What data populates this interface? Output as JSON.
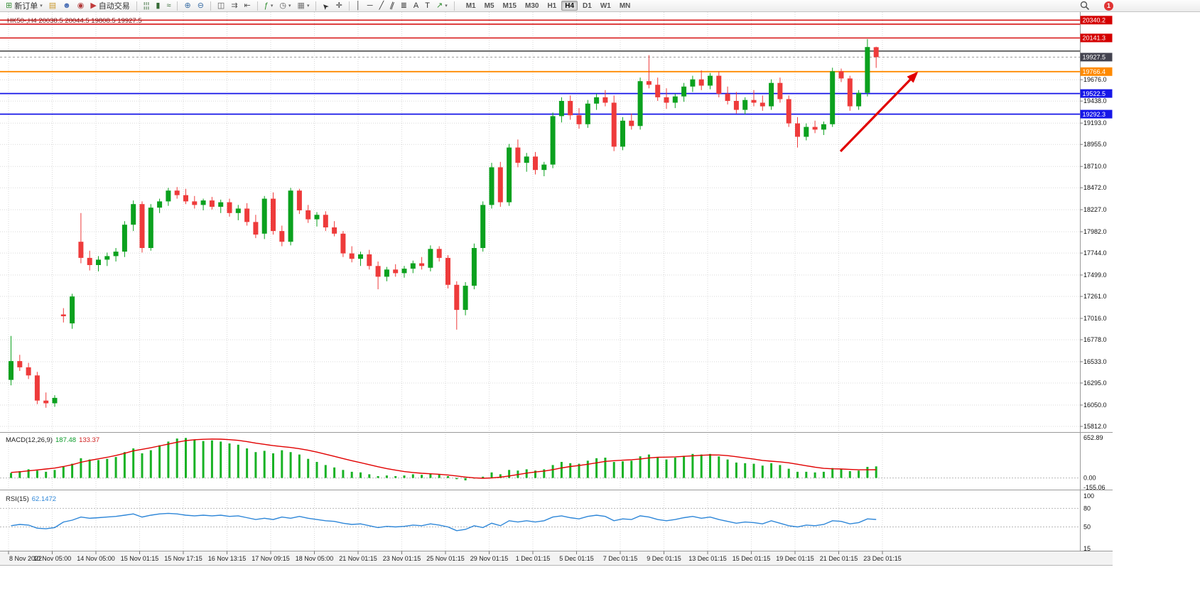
{
  "toolbar": {
    "items": [
      {
        "type": "button",
        "name": "new-order-button",
        "icon_name": "new-order-icon",
        "glyph": "⊞",
        "glyph_color": "#3a8f3a",
        "label": "新订单",
        "caret": true
      },
      {
        "type": "icon",
        "name": "market-watch-icon",
        "glyph": "▤",
        "color": "#c9992e"
      },
      {
        "type": "icon",
        "name": "community-icon",
        "glyph": "☻",
        "color": "#4a6fb5"
      },
      {
        "type": "icon",
        "name": "alerts-icon",
        "glyph": "◉",
        "color": "#b03a3a"
      },
      {
        "type": "button",
        "name": "autotrading-button",
        "icon_name": "autotrading-icon",
        "glyph": "▶",
        "glyph_color": "#c03a3a",
        "label": "自动交易",
        "caret": false
      },
      {
        "type": "sep"
      },
      {
        "type": "icon",
        "name": "bar-chart-icon",
        "glyph": "¦¦¦",
        "color": "#356a35"
      },
      {
        "type": "icon",
        "name": "candlestick-chart-icon",
        "glyph": "▮",
        "color": "#356a35"
      },
      {
        "type": "icon",
        "name": "line-chart-icon",
        "glyph": "≈",
        "color": "#356a35"
      },
      {
        "type": "sep"
      },
      {
        "type": "icon",
        "name": "zoom-in-icon",
        "glyph": "⊕",
        "color": "#3a6ea5"
      },
      {
        "type": "icon",
        "name": "zoom-out-icon",
        "glyph": "⊖",
        "color": "#3a6ea5"
      },
      {
        "type": "sep"
      },
      {
        "type": "icon",
        "name": "tile-windows-icon",
        "glyph": "◫",
        "color": "#555555"
      },
      {
        "type": "icon",
        "name": "auto-scroll-icon",
        "glyph": "⇉",
        "color": "#555555"
      },
      {
        "type": "icon",
        "name": "chart-shift-icon",
        "glyph": "⇤",
        "color": "#555555"
      },
      {
        "type": "sep"
      },
      {
        "type": "icon",
        "name": "indicators-icon",
        "glyph": "ƒ",
        "color": "#2a8a2a",
        "caret": true
      },
      {
        "type": "icon",
        "name": "periods-icon",
        "glyph": "◷",
        "color": "#555555",
        "caret": true
      },
      {
        "type": "icon",
        "name": "templates-icon",
        "glyph": "▦",
        "color": "#777777",
        "caret": true
      },
      {
        "type": "sep"
      },
      {
        "type": "icon",
        "name": "cursor-icon",
        "glyph": "➤",
        "color": "#333333",
        "rot": "-135"
      },
      {
        "type": "icon",
        "name": "crosshair-icon",
        "glyph": "✛",
        "color": "#333333"
      },
      {
        "type": "sep"
      },
      {
        "type": "icon",
        "name": "vertical-line-icon",
        "glyph": "│",
        "color": "#333333"
      },
      {
        "type": "icon",
        "name": "horizontal-line-icon",
        "glyph": "─",
        "color": "#333333"
      },
      {
        "type": "icon",
        "name": "trendline-icon",
        "glyph": "╱",
        "color": "#333333"
      },
      {
        "type": "icon",
        "name": "equidistant-channel-icon",
        "glyph": "∥",
        "color": "#333333",
        "rot": "20"
      },
      {
        "type": "icon",
        "name": "fibonacci-icon",
        "glyph": "≣",
        "color": "#333333"
      },
      {
        "type": "icon",
        "name": "text-icon",
        "glyph": "A",
        "color": "#333333"
      },
      {
        "type": "icon",
        "name": "text-label-icon",
        "glyph": "T",
        "color": "#333333"
      },
      {
        "type": "icon",
        "name": "arrows-icon",
        "glyph": "↗",
        "color": "#2a8a2a",
        "caret": true
      },
      {
        "type": "sep"
      },
      {
        "type": "tf-group"
      }
    ],
    "timeframes": [
      "M1",
      "M5",
      "M15",
      "M30",
      "H1",
      "H4",
      "D1",
      "W1",
      "MN"
    ],
    "active_timeframe": "H4",
    "notification_count": "1"
  },
  "chart": {
    "header": "HK50-,H4  20038.5 20044.5 19808.5 19927.5"
  },
  "macd_panel": {
    "name": "MACD(12,26,9)",
    "value_main": "187.48",
    "value_signal": "133.37",
    "axis": [
      "652.89",
      "0.00",
      "-155.06"
    ]
  },
  "rsi_panel": {
    "name": "RSI(15)",
    "value": "62.1472",
    "axis": [
      "100",
      "80",
      "50",
      "15"
    ]
  },
  "chart_data": {
    "type": "candlestick",
    "symbol": "HK50-",
    "timeframe": "H4",
    "ohlc_header": {
      "open": 20038.5,
      "high": 20044.5,
      "low": 19808.5,
      "close": 19927.5
    },
    "ylim": [
      15812,
      20430
    ],
    "colors": {
      "up": "#0ba11e",
      "down": "#ee3b3b",
      "macd_histogram": "#18b224",
      "macd_signal": "#e10000",
      "rsi_line": "#2d86d8",
      "grid": "#d9d9d9",
      "arrow": "#e10000"
    },
    "price_axis_gridlines": [
      "19676.0",
      "19438.0",
      "19193.0",
      "18955.0",
      "18710.0",
      "18472.0",
      "18227.0",
      "17982.0",
      "17744.0",
      "17499.0",
      "17261.0",
      "17016.0",
      "16778.0",
      "16533.0",
      "16295.0",
      "16050.0",
      "15812.0"
    ],
    "time_axis_labels": [
      "8 Nov 2022",
      "10 Nov 05:00",
      "14 Nov 05:00",
      "15 Nov 01:15",
      "15 Nov 17:15",
      "16 Nov 13:15",
      "17 Nov 09:15",
      "18 Nov 05:00",
      "21 Nov 01:15",
      "23 Nov 01:15",
      "25 Nov 01:15",
      "29 Nov 01:15",
      "1 Dec 01:15",
      "5 Dec 01:15",
      "7 Dec 01:15",
      "9 Dec 01:15",
      "13 Dec 01:15",
      "15 Dec 01:15",
      "19 Dec 01:15",
      "21 Dec 01:15",
      "23 Dec 01:15"
    ],
    "levels": [
      {
        "price": 20340.2,
        "label": "20340.2",
        "color": "#d40000",
        "width": 1.4
      },
      {
        "price": 20295,
        "label": null,
        "color": "#d40000",
        "width": 1.4
      },
      {
        "price": 20141.3,
        "label": "20141.3",
        "color": "#d40000",
        "width": 1.4
      },
      {
        "price": 19995,
        "label": null,
        "color": "#1a1a1a",
        "width": 1.2
      },
      {
        "price": 19927.5,
        "label": "19927.5",
        "color": "#9a9a9a",
        "label_bg": "#43434f",
        "width": 1,
        "dashed": true
      },
      {
        "price": 19766.4,
        "label": "19766.4",
        "color": "#ff8a00",
        "width": 1.8
      },
      {
        "price": 19522.5,
        "label": "19522.5",
        "color": "#1616e8",
        "width": 1.8
      },
      {
        "price": 19292.3,
        "label": "19292.3",
        "color": "#1616e8",
        "width": 1.8
      }
    ],
    "annotation": {
      "type": "arrow",
      "color": "#e10000"
    },
    "candles": [
      [
        16330,
        16820,
        16270,
        16540
      ],
      [
        16540,
        16610,
        16430,
        16470
      ],
      [
        16470,
        16520,
        16340,
        16380
      ],
      [
        16380,
        16420,
        16060,
        16100
      ],
      [
        16100,
        16190,
        16020,
        16070
      ],
      [
        16070,
        16160,
        16030,
        16130
      ],
      [
        17060,
        17130,
        16970,
        17040
      ],
      [
        16960,
        17290,
        16900,
        17260
      ],
      [
        17870,
        18190,
        17630,
        17690
      ],
      [
        17690,
        17770,
        17550,
        17610
      ],
      [
        17610,
        17710,
        17540,
        17670
      ],
      [
        17670,
        17750,
        17600,
        17710
      ],
      [
        17710,
        17800,
        17650,
        17760
      ],
      [
        17760,
        18100,
        17700,
        18060
      ],
      [
        18060,
        18330,
        17990,
        18290
      ],
      [
        18290,
        18320,
        17750,
        17800
      ],
      [
        17800,
        18290,
        17770,
        18250
      ],
      [
        18250,
        18350,
        18190,
        18320
      ],
      [
        18320,
        18470,
        18270,
        18440
      ],
      [
        18440,
        18480,
        18350,
        18390
      ],
      [
        18390,
        18460,
        18290,
        18320
      ],
      [
        18320,
        18380,
        18240,
        18280
      ],
      [
        18280,
        18350,
        18220,
        18330
      ],
      [
        18330,
        18370,
        18230,
        18260
      ],
      [
        18260,
        18340,
        18190,
        18310
      ],
      [
        18310,
        18350,
        18150,
        18190
      ],
      [
        18190,
        18280,
        18110,
        18240
      ],
      [
        18240,
        18300,
        18050,
        18090
      ],
      [
        18090,
        18170,
        17910,
        17950
      ],
      [
        17960,
        18380,
        17900,
        18350
      ],
      [
        18350,
        18420,
        17950,
        17990
      ],
      [
        17990,
        18050,
        17820,
        17870
      ],
      [
        17870,
        18470,
        17830,
        18440
      ],
      [
        18440,
        18460,
        18180,
        18220
      ],
      [
        18220,
        18280,
        18080,
        18120
      ],
      [
        18120,
        18200,
        18040,
        18170
      ],
      [
        18170,
        18210,
        17990,
        18030
      ],
      [
        18030,
        18100,
        17930,
        17960
      ],
      [
        17960,
        17990,
        17700,
        17740
      ],
      [
        17740,
        17820,
        17640,
        17680
      ],
      [
        17680,
        17760,
        17600,
        17730
      ],
      [
        17730,
        17780,
        17560,
        17600
      ],
      [
        17600,
        17650,
        17340,
        17480
      ],
      [
        17480,
        17590,
        17430,
        17560
      ],
      [
        17560,
        17620,
        17480,
        17520
      ],
      [
        17520,
        17600,
        17470,
        17570
      ],
      [
        17570,
        17660,
        17520,
        17630
      ],
      [
        17630,
        17700,
        17560,
        17600
      ],
      [
        17580,
        17830,
        17540,
        17790
      ],
      [
        17790,
        17820,
        17650,
        17690
      ],
      [
        17690,
        17720,
        17350,
        17390
      ],
      [
        17390,
        17430,
        16890,
        17110
      ],
      [
        17110,
        17420,
        17050,
        17380
      ],
      [
        17380,
        17850,
        17340,
        17800
      ],
      [
        17800,
        18320,
        17760,
        18280
      ],
      [
        18280,
        18750,
        18240,
        18700
      ],
      [
        18700,
        18760,
        18260,
        18310
      ],
      [
        18310,
        18960,
        18270,
        18920
      ],
      [
        18920,
        19010,
        18700,
        18750
      ],
      [
        18750,
        18860,
        18650,
        18820
      ],
      [
        18820,
        18870,
        18620,
        18670
      ],
      [
        18670,
        18760,
        18600,
        18730
      ],
      [
        18730,
        19310,
        18690,
        19270
      ],
      [
        19270,
        19480,
        19200,
        19440
      ],
      [
        19440,
        19500,
        19230,
        19280
      ],
      [
        19280,
        19360,
        19130,
        19180
      ],
      [
        19180,
        19450,
        19140,
        19410
      ],
      [
        19410,
        19520,
        19340,
        19480
      ],
      [
        19480,
        19560,
        19380,
        19420
      ],
      [
        19420,
        19500,
        18880,
        18930
      ],
      [
        18930,
        19260,
        18890,
        19220
      ],
      [
        19220,
        19300,
        19120,
        19160
      ],
      [
        19160,
        19700,
        19120,
        19660
      ],
      [
        19660,
        19950,
        19580,
        19620
      ],
      [
        19620,
        19700,
        19440,
        19480
      ],
      [
        19480,
        19580,
        19350,
        19420
      ],
      [
        19420,
        19520,
        19360,
        19490
      ],
      [
        19490,
        19640,
        19430,
        19600
      ],
      [
        19600,
        19720,
        19540,
        19680
      ],
      [
        19680,
        19780,
        19560,
        19610
      ],
      [
        19610,
        19750,
        19570,
        19720
      ],
      [
        19720,
        19770,
        19480,
        19520
      ],
      [
        19520,
        19600,
        19400,
        19440
      ],
      [
        19440,
        19540,
        19300,
        19340
      ],
      [
        19340,
        19480,
        19290,
        19450
      ],
      [
        19450,
        19560,
        19380,
        19420
      ],
      [
        19420,
        19500,
        19330,
        19380
      ],
      [
        19380,
        19680,
        19340,
        19640
      ],
      [
        19640,
        19700,
        19420,
        19460
      ],
      [
        19460,
        19500,
        19150,
        19190
      ],
      [
        19190,
        19260,
        18920,
        19040
      ],
      [
        19040,
        19190,
        19000,
        19150
      ],
      [
        19150,
        19220,
        19080,
        19120
      ],
      [
        19120,
        19210,
        19060,
        19180
      ],
      [
        19180,
        19810,
        19150,
        19770
      ],
      [
        19770,
        19800,
        19650,
        19690
      ],
      [
        19690,
        19720,
        19330,
        19380
      ],
      [
        19380,
        19560,
        19340,
        19530
      ],
      [
        19530,
        20130,
        19490,
        20040
      ],
      [
        20038.5,
        20044.5,
        19808.5,
        19927.5
      ]
    ],
    "macd": {
      "ylim": [
        -155.06,
        652.89
      ],
      "histogram": [
        80,
        110,
        140,
        120,
        100,
        130,
        180,
        230,
        320,
        300,
        290,
        310,
        340,
        420,
        480,
        400,
        450,
        530,
        590,
        640,
        650,
        620,
        600,
        610,
        590,
        560,
        540,
        480,
        420,
        440,
        400,
        450,
        420,
        380,
        310,
        260,
        210,
        170,
        130,
        100,
        90,
        60,
        30,
        40,
        30,
        40,
        60,
        50,
        70,
        60,
        30,
        -20,
        -40,
        -10,
        20,
        90,
        60,
        130,
        120,
        140,
        120,
        140,
        210,
        260,
        240,
        230,
        280,
        320,
        330,
        260,
        270,
        280,
        350,
        380,
        340,
        300,
        330,
        360,
        390,
        380,
        390,
        350,
        300,
        250,
        240,
        230,
        200,
        240,
        210,
        150,
        100,
        100,
        90,
        100,
        160,
        150,
        110,
        120,
        180,
        187.48
      ],
      "signal": [
        90,
        100,
        115,
        130,
        145,
        160,
        185,
        215,
        255,
        285,
        310,
        335,
        365,
        400,
        440,
        465,
        490,
        520,
        550,
        580,
        605,
        620,
        628,
        632,
        630,
        622,
        610,
        590,
        565,
        545,
        525,
        510,
        495,
        475,
        450,
        420,
        385,
        350,
        315,
        280,
        248,
        215,
        182,
        152,
        126,
        104,
        88,
        76,
        68,
        60,
        48,
        32,
        15,
        2,
        -5,
        0,
        12,
        32,
        55,
        78,
        96,
        112,
        135,
        162,
        185,
        202,
        222,
        245,
        268,
        280,
        288,
        295,
        308,
        325,
        335,
        338,
        342,
        350,
        360,
        368,
        374,
        372,
        362,
        345,
        325,
        305,
        285,
        272,
        262,
        245,
        222,
        198,
        175,
        155,
        148,
        145,
        138,
        132,
        132,
        133.37
      ]
    },
    "rsi": {
      "ylim": [
        15,
        100
      ],
      "levels": [
        80,
        50
      ],
      "values": [
        52,
        54,
        53,
        48,
        47,
        49,
        58,
        61,
        66,
        64,
        65,
        66,
        67,
        69,
        71,
        66,
        69,
        71,
        72,
        71,
        69,
        68,
        69,
        68,
        69,
        67,
        68,
        65,
        62,
        64,
        62,
        66,
        64,
        67,
        64,
        62,
        60,
        59,
        56,
        54,
        55,
        52,
        49,
        51,
        50,
        51,
        53,
        52,
        55,
        53,
        50,
        44,
        46,
        52,
        49,
        56,
        52,
        60,
        58,
        60,
        58,
        60,
        66,
        68,
        65,
        63,
        67,
        69,
        67,
        60,
        63,
        62,
        68,
        66,
        62,
        60,
        62,
        65,
        67,
        64,
        66,
        62,
        59,
        56,
        58,
        57,
        55,
        60,
        56,
        52,
        50,
        53,
        52,
        54,
        60,
        59,
        55,
        57,
        63,
        62.1472
      ]
    }
  }
}
